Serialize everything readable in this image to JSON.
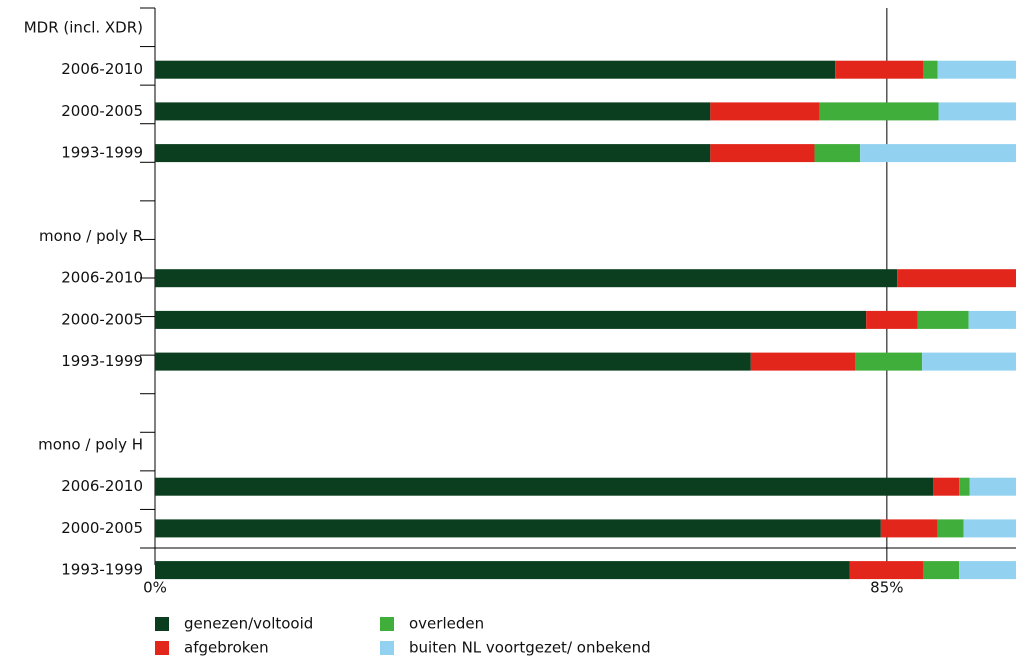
{
  "chart_data": {
    "type": "stacked-barh",
    "categories": [
      "MDR (incl. XDR)",
      "2006-2010",
      "2000-2005",
      "1993-1999",
      null,
      "mono / poly R",
      "2006-2010",
      "2000-2005",
      "1993-1999",
      null,
      "mono / poly H",
      "2006-2010",
      "2000-2005",
      "1993-1999"
    ],
    "series": [
      {
        "name": "genezen/voltooid",
        "color": "#0b3d1f",
        "values": [
          null,
          79.0,
          64.5,
          64.5,
          null,
          null,
          86.2,
          82.6,
          69.2,
          null,
          null,
          90.4,
          84.3,
          80.7
        ]
      },
      {
        "name": "afgebroken",
        "color": "#e3261b",
        "values": [
          null,
          10.2,
          12.7,
          12.1,
          null,
          null,
          13.8,
          6.0,
          12.1,
          null,
          null,
          3.0,
          6.6,
          8.5
        ]
      },
      {
        "name": "overleden",
        "color": "#3fae3a",
        "values": [
          null,
          1.7,
          13.8,
          5.3,
          null,
          null,
          0,
          5.9,
          7.8,
          null,
          null,
          1.2,
          3.0,
          4.2
        ]
      },
      {
        "name": "buiten NL voortgezet/ onbekend",
        "color": "#92d2f0",
        "values": [
          null,
          9.1,
          9.0,
          18.1,
          null,
          null,
          0,
          5.5,
          10.9,
          null,
          null,
          5.4,
          6.1,
          6.6
        ]
      }
    ],
    "xlim": [
      0,
      100
    ],
    "xticks": [
      {
        "value": 0,
        "label": "0%"
      },
      {
        "value": 85,
        "label": "85%"
      }
    ],
    "grid": true
  }
}
